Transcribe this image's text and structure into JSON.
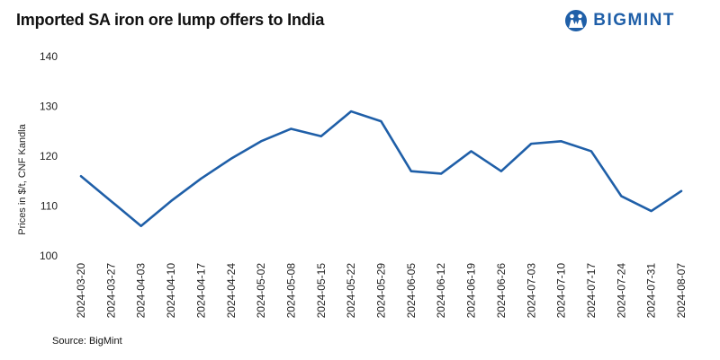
{
  "header": {
    "title": "Imported SA iron ore lump offers to India",
    "brand_name": "BIGMINT",
    "brand_color": "#1f5fa8"
  },
  "footer": {
    "source": "Source: BigMint"
  },
  "chart_data": {
    "type": "line",
    "title": "Imported SA iron ore lump offers to India",
    "xlabel": "",
    "ylabel": "Prices in $/t, CNF Kandla",
    "ylim": [
      100,
      140
    ],
    "yticks": [
      100,
      110,
      120,
      130,
      140
    ],
    "grid": false,
    "categories": [
      "2024-03-20",
      "2024-03-27",
      "2024-04-03",
      "2024-04-10",
      "2024-04-17",
      "2024-04-24",
      "2024-05-02",
      "2024-05-08",
      "2024-05-15",
      "2024-05-22",
      "2024-05-29",
      "2024-06-05",
      "2024-06-12",
      "2024-06-19",
      "2024-06-26",
      "2024-07-03",
      "2024-07-10",
      "2024-07-17",
      "2024-07-24",
      "2024-07-31",
      "2024-08-07"
    ],
    "series": [
      {
        "color": "#1f5fa8",
        "values": [
          116,
          111,
          106,
          111,
          115.5,
          119.5,
          123,
          125.5,
          124,
          129,
          127,
          117,
          116.5,
          121,
          117,
          122.5,
          123,
          121,
          112,
          109,
          113
        ]
      }
    ]
  }
}
